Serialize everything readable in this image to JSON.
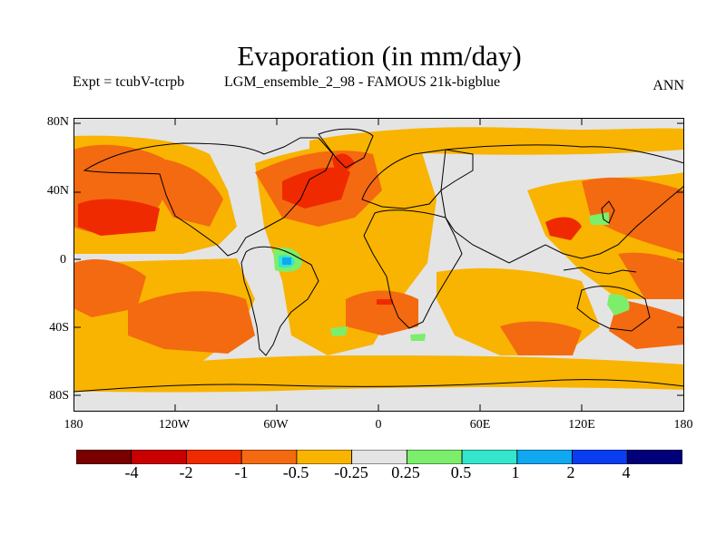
{
  "title": "Evaporation (in mm/day)",
  "subtitle_left": "Expt = tcubV-tcrpb",
  "subtitle_mid": "LGM_ensemble_2_98 - FAMOUS 21k-bigblue",
  "subtitle_right": "ANN",
  "lat_labels": [
    "80N",
    "40N",
    "0",
    "40S",
    "80S"
  ],
  "lon_labels": [
    "180",
    "120W",
    "60W",
    "0",
    "60E",
    "120E",
    "180"
  ],
  "colorbar": {
    "labels": [
      "-4",
      "-2",
      "-1",
      "-0.5",
      "-0.25",
      "0.25",
      "0.5",
      "1",
      "2",
      "4"
    ],
    "colors": [
      "#7a0000",
      "#c80000",
      "#f02a00",
      "#f46a10",
      "#f8b400",
      "#e4e4e4",
      "#7cee6c",
      "#33e6cc",
      "#10a8f0",
      "#0a3cf0",
      "#00007a"
    ]
  },
  "colors": {
    "land_outline": "#000000",
    "background_neutral": "#e4e4e4"
  }
}
